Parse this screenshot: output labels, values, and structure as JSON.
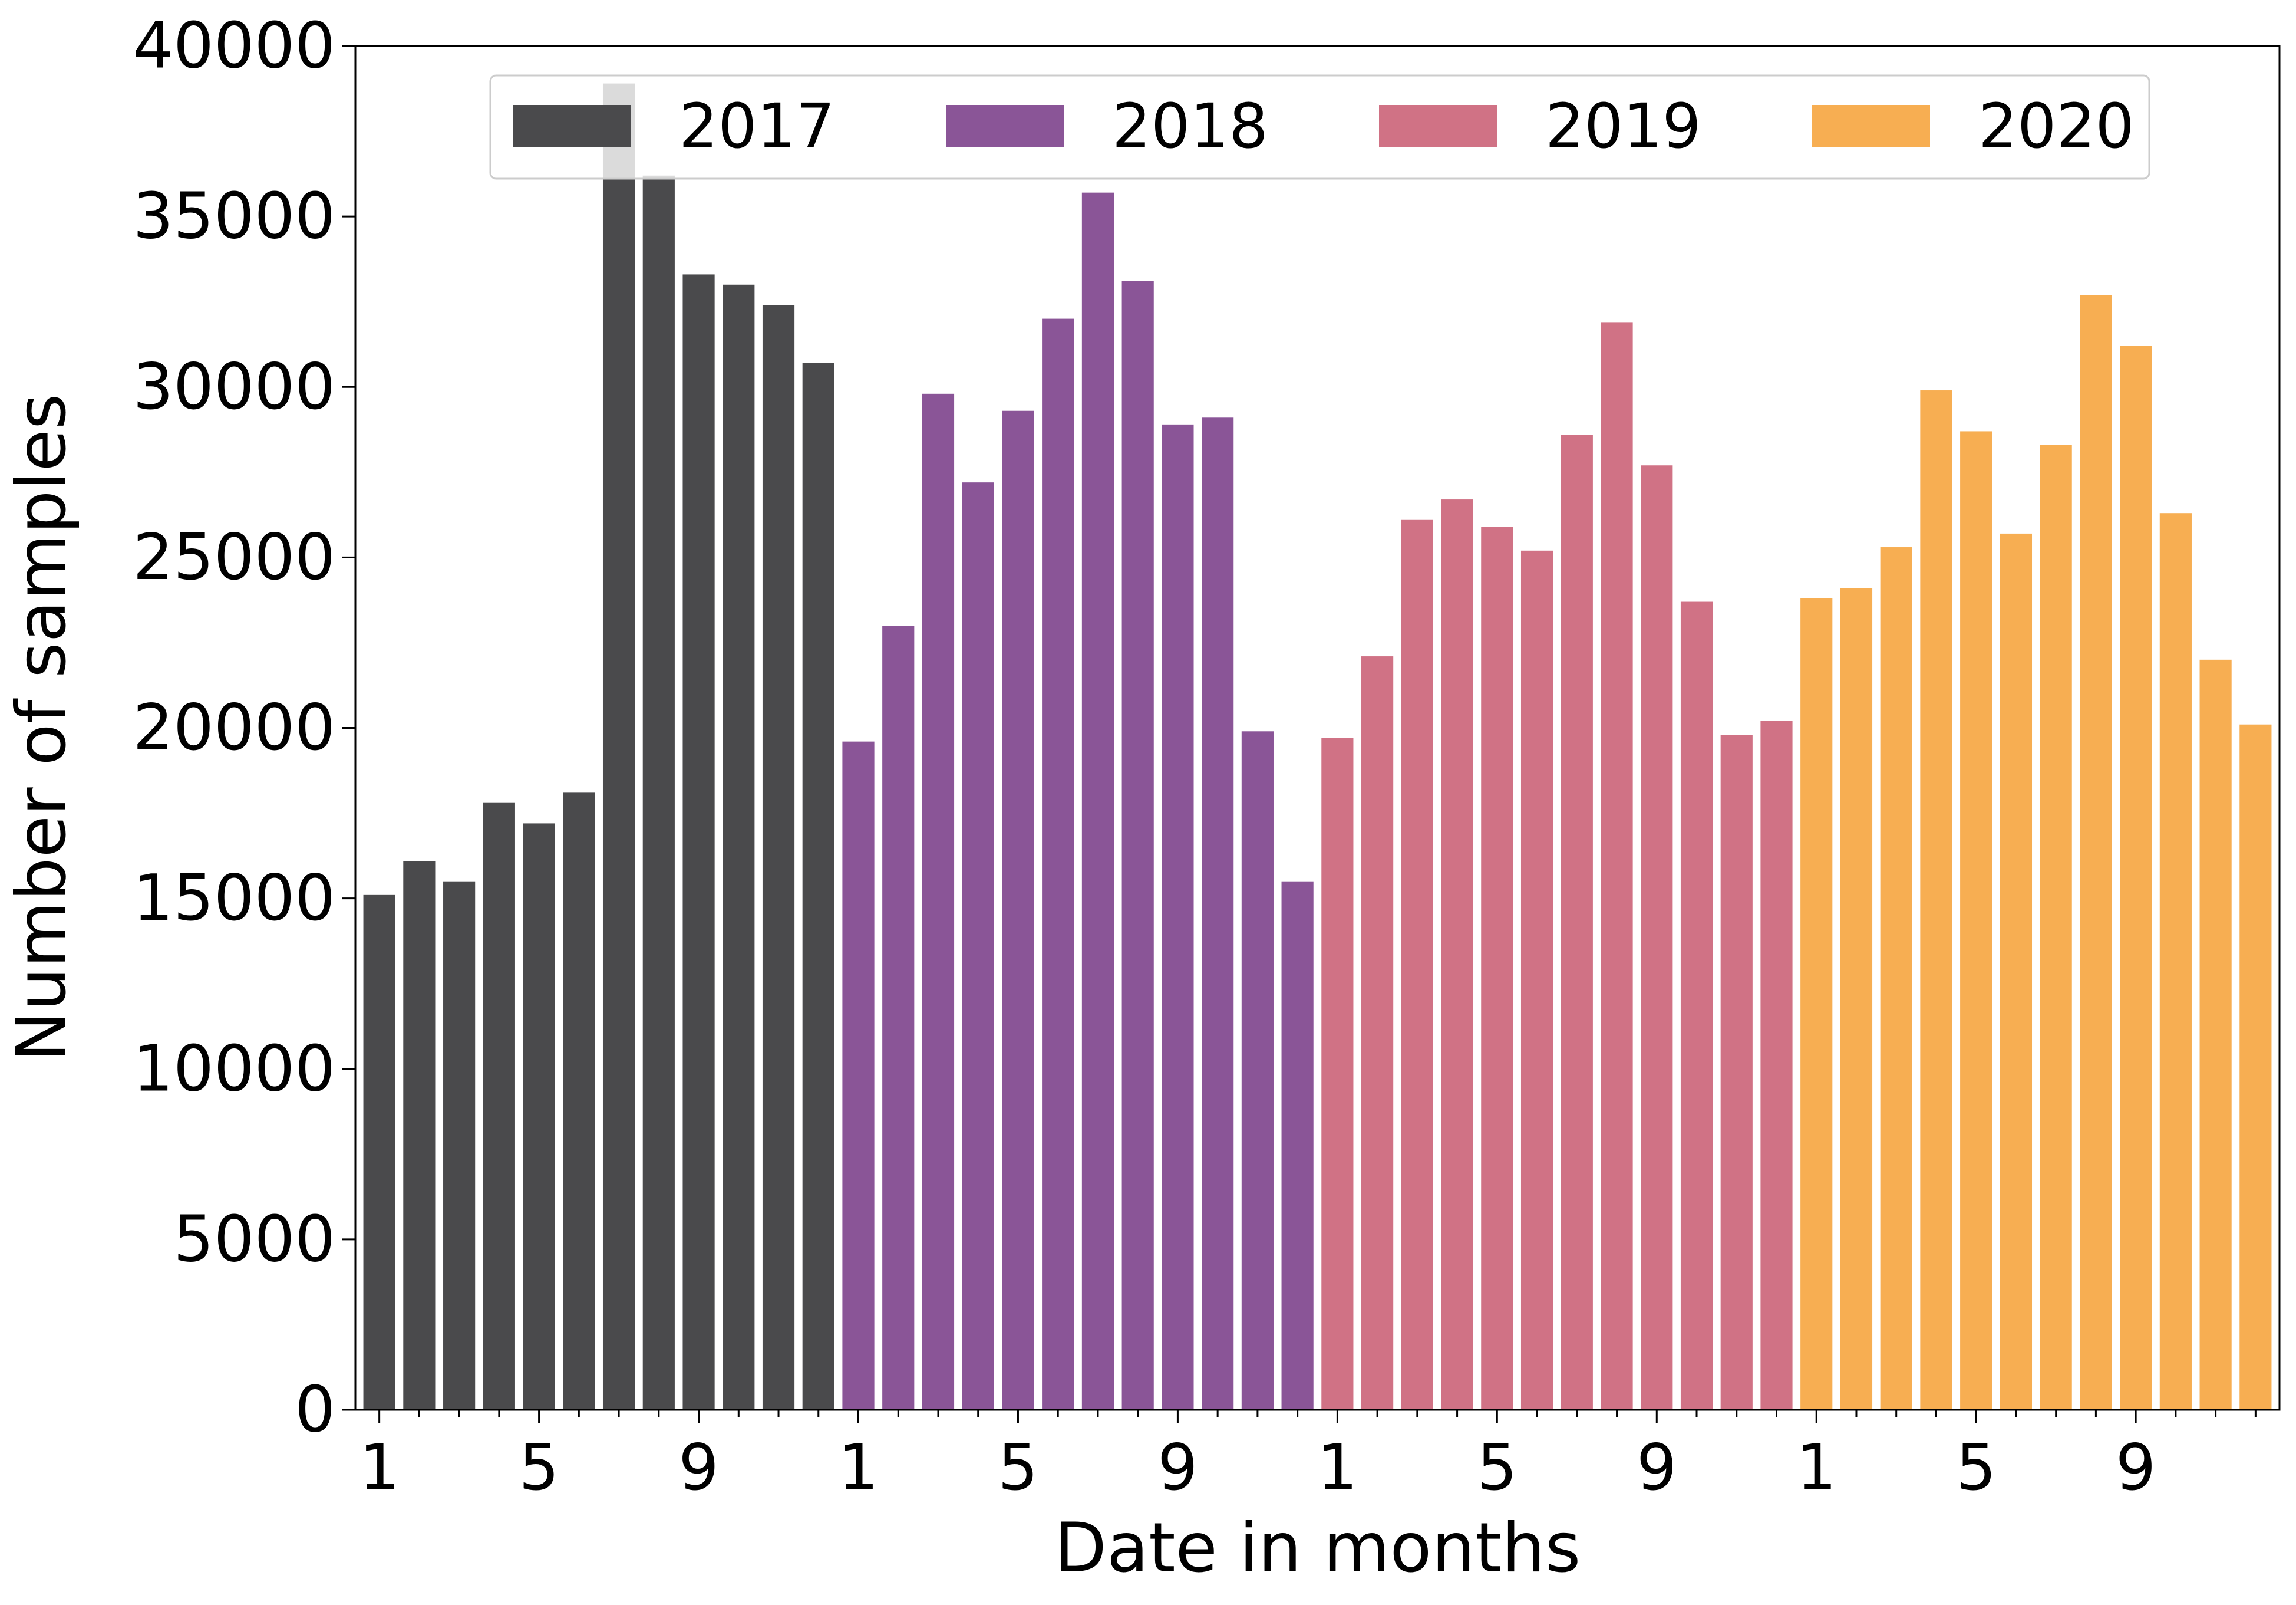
{
  "chart_data": {
    "type": "bar",
    "title": "",
    "xlabel": "Date in months",
    "ylabel": "Number of samples",
    "ylim": [
      0,
      40000
    ],
    "yticks": [
      0,
      5000,
      10000,
      15000,
      20000,
      25000,
      30000,
      35000,
      40000
    ],
    "ytick_labels": [
      "0",
      "5000",
      "10000",
      "15000",
      "20000",
      "25000",
      "30000",
      "35000",
      "40000"
    ],
    "xtick_labels": [
      "1",
      "5",
      "9"
    ],
    "months": [
      1,
      2,
      3,
      4,
      5,
      6,
      7,
      8,
      9,
      10,
      11,
      12
    ],
    "legend_position": "top-center",
    "grid": false,
    "series": [
      {
        "name": "2017",
        "color": "#4a4a4c",
        "values": [
          15100,
          16100,
          15500,
          17800,
          17200,
          18100,
          38900,
          36200,
          33300,
          33000,
          32400,
          30700
        ]
      },
      {
        "name": "2018",
        "color": "#8a5597",
        "values": [
          19600,
          23000,
          29800,
          27200,
          29300,
          32000,
          35700,
          33100,
          28900,
          29100,
          19900,
          15500
        ]
      },
      {
        "name": "2019",
        "color": "#d07285",
        "values": [
          19700,
          22100,
          26100,
          26700,
          25900,
          25200,
          28600,
          31900,
          27700,
          23700,
          19800,
          20200
        ]
      },
      {
        "name": "2020",
        "color": "#f7ae52",
        "values": [
          23800,
          24100,
          25300,
          29900,
          28700,
          25700,
          28300,
          32700,
          31200,
          26300,
          22000,
          20100
        ]
      }
    ]
  }
}
